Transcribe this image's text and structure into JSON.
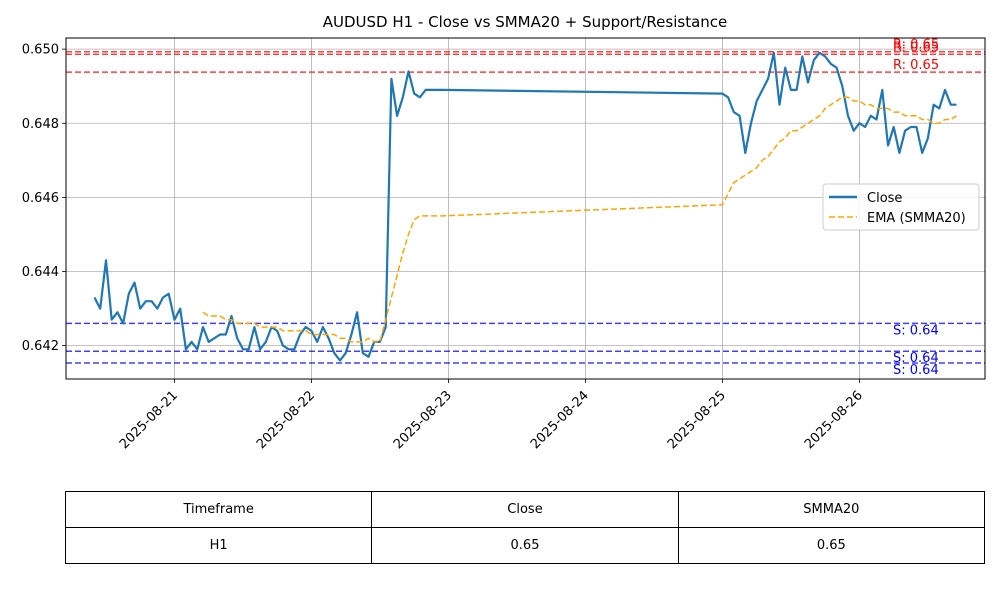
{
  "chart_data": {
    "type": "line",
    "title": "AUDUSD H1 - Close vs SMMA20 + Support/Resistance",
    "xlabel": "",
    "ylabel": "",
    "xlim": [
      "2025-08-20T05:00",
      "2025-08-26T22:00"
    ],
    "ylim": [
      0.6411,
      0.6503
    ],
    "x_ticks": [
      "2025-08-21",
      "2025-08-22",
      "2025-08-23",
      "2025-08-24",
      "2025-08-25",
      "2025-08-26"
    ],
    "y_ticks": [
      0.642,
      0.644,
      0.646,
      0.648,
      0.65
    ],
    "y_tick_labels": [
      "0.642",
      "0.644",
      "0.646",
      "0.648",
      "0.650"
    ],
    "grid": true,
    "legend_position": "center-right",
    "series": [
      {
        "name": "Close",
        "color": "#1f77b4",
        "style": "solid",
        "x": [
          "2025-08-20T10:00",
          "2025-08-20T11:00",
          "2025-08-20T12:00",
          "2025-08-20T13:00",
          "2025-08-20T14:00",
          "2025-08-20T15:00",
          "2025-08-20T16:00",
          "2025-08-20T17:00",
          "2025-08-20T18:00",
          "2025-08-20T19:00",
          "2025-08-20T20:00",
          "2025-08-20T21:00",
          "2025-08-20T22:00",
          "2025-08-20T23:00",
          "2025-08-21T00:00",
          "2025-08-21T01:00",
          "2025-08-21T02:00",
          "2025-08-21T03:00",
          "2025-08-21T04:00",
          "2025-08-21T05:00",
          "2025-08-21T06:00",
          "2025-08-21T07:00",
          "2025-08-21T08:00",
          "2025-08-21T09:00",
          "2025-08-21T10:00",
          "2025-08-21T11:00",
          "2025-08-21T12:00",
          "2025-08-21T13:00",
          "2025-08-21T14:00",
          "2025-08-21T15:00",
          "2025-08-21T16:00",
          "2025-08-21T17:00",
          "2025-08-21T18:00",
          "2025-08-21T19:00",
          "2025-08-21T20:00",
          "2025-08-21T21:00",
          "2025-08-21T22:00",
          "2025-08-21T23:00",
          "2025-08-22T00:00",
          "2025-08-22T01:00",
          "2025-08-22T02:00",
          "2025-08-22T03:00",
          "2025-08-22T04:00",
          "2025-08-22T05:00",
          "2025-08-22T06:00",
          "2025-08-22T07:00",
          "2025-08-22T08:00",
          "2025-08-22T09:00",
          "2025-08-22T10:00",
          "2025-08-22T11:00",
          "2025-08-22T12:00",
          "2025-08-22T13:00",
          "2025-08-22T14:00",
          "2025-08-22T15:00",
          "2025-08-22T16:00",
          "2025-08-22T17:00",
          "2025-08-22T18:00",
          "2025-08-22T19:00",
          "2025-08-22T20:00",
          "2025-08-22T21:00",
          "2025-08-22T22:00",
          "2025-08-22T23:00",
          "2025-08-25T00:00",
          "2025-08-25T01:00",
          "2025-08-25T02:00",
          "2025-08-25T03:00",
          "2025-08-25T04:00",
          "2025-08-25T05:00",
          "2025-08-25T06:00",
          "2025-08-25T07:00",
          "2025-08-25T08:00",
          "2025-08-25T09:00",
          "2025-08-25T10:00",
          "2025-08-25T11:00",
          "2025-08-25T12:00",
          "2025-08-25T13:00",
          "2025-08-25T14:00",
          "2025-08-25T15:00",
          "2025-08-25T16:00",
          "2025-08-25T17:00",
          "2025-08-25T18:00",
          "2025-08-25T19:00",
          "2025-08-25T20:00",
          "2025-08-25T21:00",
          "2025-08-25T22:00",
          "2025-08-25T23:00",
          "2025-08-26T00:00",
          "2025-08-26T01:00",
          "2025-08-26T02:00",
          "2025-08-26T03:00",
          "2025-08-26T04:00",
          "2025-08-26T05:00",
          "2025-08-26T06:00",
          "2025-08-26T07:00",
          "2025-08-26T08:00",
          "2025-08-26T09:00",
          "2025-08-26T10:00",
          "2025-08-26T11:00",
          "2025-08-26T12:00",
          "2025-08-26T13:00",
          "2025-08-26T14:00",
          "2025-08-26T15:00",
          "2025-08-26T16:00",
          "2025-08-26T17:00"
        ],
        "values": [
          0.6433,
          0.643,
          0.6443,
          0.6427,
          0.6429,
          0.6426,
          0.6434,
          0.6437,
          0.643,
          0.6432,
          0.6432,
          0.643,
          0.6433,
          0.6434,
          0.6427,
          0.643,
          0.6419,
          0.6421,
          0.6419,
          0.6425,
          0.6421,
          0.6422,
          0.6423,
          0.6423,
          0.6428,
          0.6422,
          0.6419,
          0.6419,
          0.6425,
          0.6419,
          0.6421,
          0.6425,
          0.6424,
          0.642,
          0.6419,
          0.6419,
          0.6423,
          0.6425,
          0.6424,
          0.6421,
          0.6425,
          0.6422,
          0.6418,
          0.6416,
          0.6418,
          0.6423,
          0.6429,
          0.6418,
          0.6417,
          0.6421,
          0.6421,
          0.6425,
          0.6492,
          0.6482,
          0.6487,
          0.6494,
          0.6488,
          0.6487,
          0.6489,
          0.6489,
          0.6489,
          0.6489,
          0.6488,
          0.6487,
          0.6483,
          0.6482,
          0.6472,
          0.648,
          0.6486,
          0.6489,
          0.6492,
          0.6499,
          0.6485,
          0.6495,
          0.6489,
          0.6489,
          0.6498,
          0.6491,
          0.6497,
          0.6499,
          0.6498,
          0.6496,
          0.6495,
          0.649,
          0.6482,
          0.6478,
          0.648,
          0.6479,
          0.6482,
          0.6481,
          0.6489,
          0.6474,
          0.6479,
          0.6472,
          0.6478,
          0.6479,
          0.6479,
          0.6472,
          0.6476,
          0.6485,
          0.6484,
          0.6489,
          0.6485,
          0.6485
        ]
      },
      {
        "name": "EMA (SMMA20)",
        "color": "#ffa500",
        "style": "dashed",
        "x": [
          "2025-08-21T05:00",
          "2025-08-21T06:00",
          "2025-08-21T07:00",
          "2025-08-21T08:00",
          "2025-08-21T09:00",
          "2025-08-21T10:00",
          "2025-08-21T11:00",
          "2025-08-21T12:00",
          "2025-08-21T13:00",
          "2025-08-21T14:00",
          "2025-08-21T15:00",
          "2025-08-21T16:00",
          "2025-08-21T17:00",
          "2025-08-21T18:00",
          "2025-08-21T19:00",
          "2025-08-21T20:00",
          "2025-08-21T21:00",
          "2025-08-21T22:00",
          "2025-08-21T23:00",
          "2025-08-22T00:00",
          "2025-08-22T01:00",
          "2025-08-22T02:00",
          "2025-08-22T03:00",
          "2025-08-22T04:00",
          "2025-08-22T05:00",
          "2025-08-22T06:00",
          "2025-08-22T07:00",
          "2025-08-22T08:00",
          "2025-08-22T09:00",
          "2025-08-22T10:00",
          "2025-08-22T11:00",
          "2025-08-22T12:00",
          "2025-08-22T13:00",
          "2025-08-22T14:00",
          "2025-08-22T15:00",
          "2025-08-22T16:00",
          "2025-08-22T17:00",
          "2025-08-22T18:00",
          "2025-08-22T19:00",
          "2025-08-22T20:00",
          "2025-08-22T21:00",
          "2025-08-22T22:00",
          "2025-08-22T23:00",
          "2025-08-25T00:00",
          "2025-08-25T01:00",
          "2025-08-25T02:00",
          "2025-08-25T03:00",
          "2025-08-25T04:00",
          "2025-08-25T05:00",
          "2025-08-25T06:00",
          "2025-08-25T07:00",
          "2025-08-25T08:00",
          "2025-08-25T09:00",
          "2025-08-25T10:00",
          "2025-08-25T11:00",
          "2025-08-25T12:00",
          "2025-08-25T13:00",
          "2025-08-25T14:00",
          "2025-08-25T15:00",
          "2025-08-25T16:00",
          "2025-08-25T17:00",
          "2025-08-25T18:00",
          "2025-08-25T19:00",
          "2025-08-25T20:00",
          "2025-08-25T21:00",
          "2025-08-25T22:00",
          "2025-08-25T23:00",
          "2025-08-26T00:00",
          "2025-08-26T01:00",
          "2025-08-26T02:00",
          "2025-08-26T03:00",
          "2025-08-26T04:00",
          "2025-08-26T05:00",
          "2025-08-26T06:00",
          "2025-08-26T07:00",
          "2025-08-26T08:00",
          "2025-08-26T09:00",
          "2025-08-26T10:00",
          "2025-08-26T11:00",
          "2025-08-26T12:00",
          "2025-08-26T13:00",
          "2025-08-26T14:00",
          "2025-08-26T15:00",
          "2025-08-26T16:00",
          "2025-08-26T17:00"
        ],
        "values": [
          0.6429,
          0.6428,
          0.6428,
          0.6428,
          0.6427,
          0.6427,
          0.6426,
          0.6426,
          0.6426,
          0.6426,
          0.6425,
          0.6425,
          0.6425,
          0.6425,
          0.6424,
          0.6424,
          0.6424,
          0.6424,
          0.6424,
          0.6423,
          0.6423,
          0.6423,
          0.6423,
          0.6423,
          0.6422,
          0.6422,
          0.6421,
          0.6421,
          0.6421,
          0.6422,
          0.6421,
          0.6421,
          0.6427,
          0.6433,
          0.6439,
          0.6445,
          0.645,
          0.6454,
          0.6455,
          0.6455,
          0.6455,
          0.6455,
          0.6455,
          0.6458,
          0.6461,
          0.6464,
          0.6465,
          0.6466,
          0.6467,
          0.6468,
          0.647,
          0.6471,
          0.6473,
          0.6475,
          0.6476,
          0.6478,
          0.6478,
          0.6479,
          0.648,
          0.6481,
          0.6482,
          0.6484,
          0.6485,
          0.6486,
          0.6487,
          0.6487,
          0.6486,
          0.6486,
          0.6485,
          0.6485,
          0.6484,
          0.6484,
          0.6484,
          0.6483,
          0.6483,
          0.6482,
          0.6482,
          0.6482,
          0.6481,
          0.6481,
          0.648,
          0.648,
          0.6481,
          0.6481,
          0.6482
        ]
      }
    ],
    "resistance": {
      "color": "#ff0000",
      "levels": [
        0.64993,
        0.64986,
        0.64938
      ],
      "labels": [
        "R: 0.65",
        "R: 0.65",
        "R: 0.65"
      ]
    },
    "support": {
      "color": "#0000ff",
      "levels": [
        0.6426,
        0.64185,
        0.64153
      ],
      "labels": [
        "S: 0.64",
        "S: 0.64",
        "S: 0.64"
      ]
    }
  },
  "summary_table": {
    "headers": [
      "Timeframe",
      "Close",
      "SMMA20"
    ],
    "rows": [
      [
        "H1",
        "0.65",
        "0.65"
      ]
    ]
  }
}
